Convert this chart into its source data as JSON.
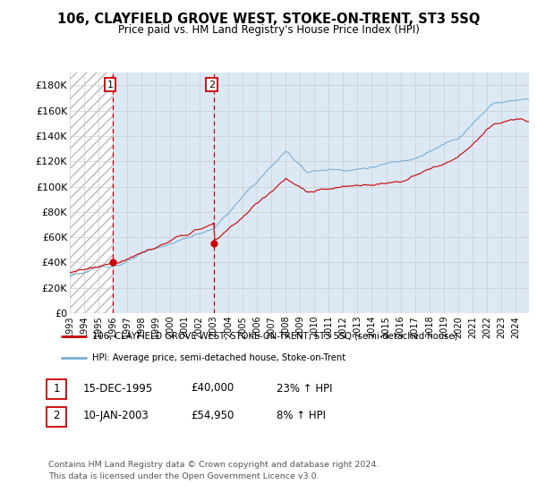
{
  "title": "106, CLAYFIELD GROVE WEST, STOKE-ON-TRENT, ST3 5SQ",
  "subtitle": "Price paid vs. HM Land Registry's House Price Index (HPI)",
  "legend_line1": "106, CLAYFIELD GROVE WEST, STOKE-ON-TRENT, ST3 5SQ (semi-detached house)",
  "legend_line2": "HPI: Average price, semi-detached house, Stoke-on-Trent",
  "footer_line1": "Contains HM Land Registry data © Crown copyright and database right 2024.",
  "footer_line2": "This data is licensed under the Open Government Licence v3.0.",
  "transactions": [
    {
      "num": 1,
      "date": "15-DEC-1995",
      "price": 40000,
      "label": "23% ↑ HPI",
      "year": 1995.96
    },
    {
      "num": 2,
      "date": "10-JAN-2003",
      "price": 54950,
      "label": "8% ↑ HPI",
      "year": 2003.03
    }
  ],
  "ylim": [
    0,
    190000
  ],
  "yticks": [
    0,
    20000,
    40000,
    60000,
    80000,
    100000,
    120000,
    140000,
    160000,
    180000
  ],
  "ytick_labels": [
    "£0",
    "£20K",
    "£40K",
    "£60K",
    "£80K",
    "£100K",
    "£120K",
    "£140K",
    "£160K",
    "£180K"
  ],
  "red_color": "#cc0000",
  "blue_color": "#7aafd4",
  "bg_color": "#dce9f5",
  "hatch_color": "#bbbbbb",
  "plot_bg": "#ffffff",
  "grid_color": "#cccccc"
}
